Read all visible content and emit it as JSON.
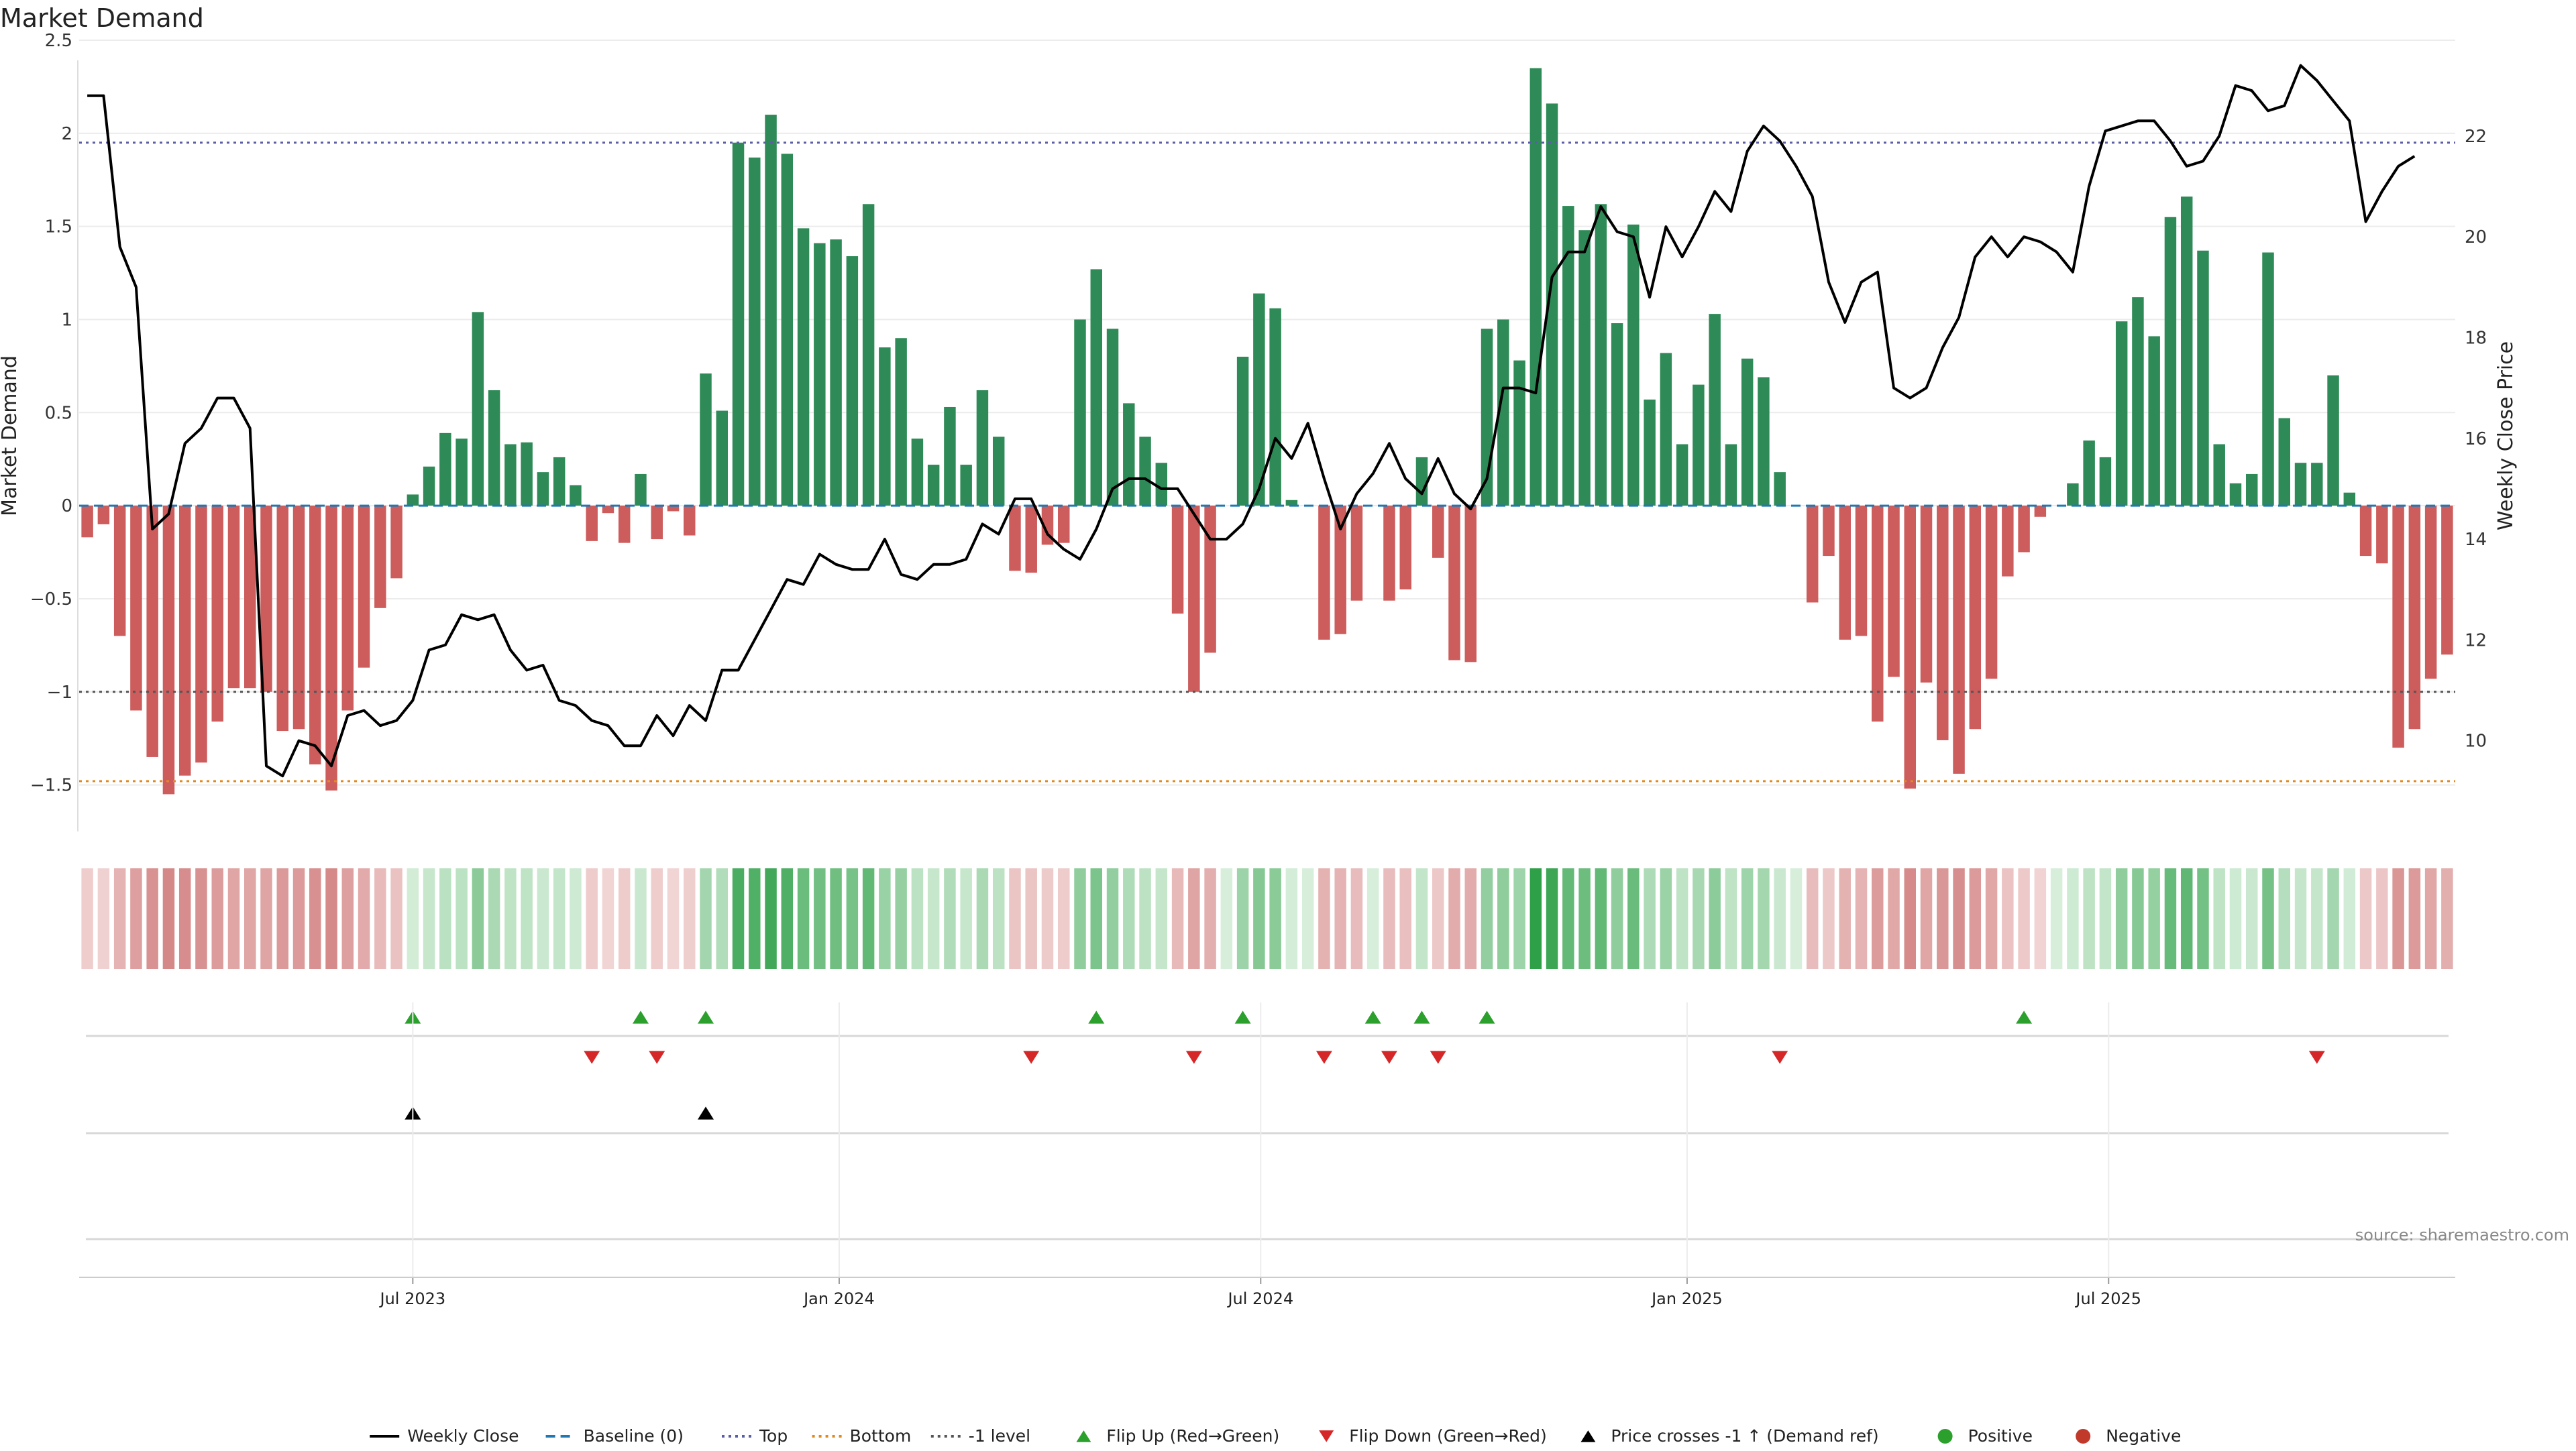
{
  "title": "Market Demand",
  "source_note": "source: sharemaestro.com",
  "left_axis": {
    "label": "Market Demand",
    "range": [
      -1.75,
      2.5
    ],
    "ticks": [
      -1.5,
      -1,
      -0.5,
      0,
      0.5,
      1,
      1.5,
      2,
      2.5
    ],
    "tick_labels": [
      "−1.5",
      "−1",
      "−0.5",
      "0",
      "0.5",
      "1",
      "1.5",
      "2",
      "2.5"
    ]
  },
  "right_axis": {
    "label": "Weekly Close Price",
    "range": [
      8.2,
      23.9
    ],
    "ticks": [
      10,
      12,
      14,
      16,
      18,
      20,
      22
    ],
    "tick_labels": [
      "10",
      "12",
      "14",
      "16",
      "18",
      "20",
      "22"
    ]
  },
  "x_axis": {
    "ticks": [
      {
        "label": "Jul 2023",
        "week": 20.5
      },
      {
        "label": "Jan 2024",
        "week": 46.7
      },
      {
        "label": "Jul 2024",
        "week": 72.6
      },
      {
        "label": "Jan 2025",
        "week": 98.8
      },
      {
        "label": "Jul 2025",
        "week": 124.7
      }
    ]
  },
  "legend": [
    {
      "label": "Weekly Close",
      "kind": "line",
      "color": "#000000"
    },
    {
      "label": "Baseline (0)",
      "kind": "dash",
      "color": "#1f77b4"
    },
    {
      "label": "Top",
      "kind": "dot",
      "color": "#5b5ea6"
    },
    {
      "label": "Bottom",
      "kind": "dot",
      "color": "#e08a1e"
    },
    {
      "label": "-1 level",
      "kind": "dot",
      "color": "#555555"
    },
    {
      "label": "Flip Up (Red→Green)",
      "kind": "tri-up",
      "color": "#2ca02c"
    },
    {
      "label": "Flip Down (Green→Red)",
      "kind": "tri-down",
      "color": "#d62728"
    },
    {
      "label": "Price crosses -1 ↑ (Demand ref)",
      "kind": "tri-up",
      "color": "#000000"
    },
    {
      "label": "Positive",
      "kind": "circle",
      "color": "#2ca02c"
    },
    {
      "label": "Negative",
      "kind": "circle",
      "color": "#c0392b"
    }
  ],
  "chart_data": {
    "type": "bar",
    "x_unit": "week index (weekly, first week ≈ Mar 2023)",
    "reference_lines": {
      "top": 1.95,
      "bottom": -1.48,
      "minus_one": -1,
      "baseline": 0
    },
    "colors": {
      "positive": "#2e8b57",
      "negative": "#cd5c5c",
      "price_line": "#000000"
    },
    "series": [
      {
        "name": "Market Demand",
        "values": [
          -0.17,
          -0.1,
          -0.7,
          -1.1,
          -1.35,
          -1.55,
          -1.45,
          -1.38,
          -1.16,
          -0.98,
          -0.98,
          -1.0,
          -1.21,
          -1.2,
          -1.39,
          -1.53,
          -1.1,
          -0.87,
          -0.55,
          -0.39,
          0.06,
          0.21,
          0.39,
          0.36,
          1.04,
          0.62,
          0.33,
          0.34,
          0.18,
          0.26,
          0.11,
          -0.19,
          -0.04,
          -0.2,
          0.17,
          -0.18,
          -0.03,
          -0.16,
          0.71,
          0.51,
          1.95,
          1.87,
          2.1,
          1.89,
          1.49,
          1.41,
          1.43,
          1.34,
          1.62,
          0.85,
          0.9,
          0.36,
          0.22,
          0.53,
          0.22,
          0.62,
          0.37,
          -0.35,
          -0.36,
          -0.21,
          -0.2,
          1.0,
          1.27,
          0.95,
          0.55,
          0.37,
          0.23,
          -0.58,
          -1.0,
          -0.79,
          0.0,
          0.8,
          1.14,
          1.06,
          0.03,
          0.0,
          -0.72,
          -0.69,
          -0.51,
          0.0,
          -0.51,
          -0.45,
          0.26,
          -0.28,
          -0.83,
          -0.84,
          0.95,
          1.0,
          0.78,
          2.35,
          2.16,
          1.61,
          1.48,
          1.62,
          0.98,
          1.51,
          0.57,
          0.82,
          0.33,
          0.65,
          1.03,
          0.33,
          0.79,
          0.69,
          0.18,
          0.0,
          -0.52,
          -0.27,
          -0.72,
          -0.7,
          -1.16,
          -0.92,
          -1.52,
          -0.95,
          -1.26,
          -1.44,
          -1.2,
          -0.93,
          -0.38,
          -0.25,
          -0.06,
          0.0,
          0.12,
          0.35,
          0.26,
          0.99,
          1.12,
          0.91,
          1.55,
          1.66,
          1.37,
          0.33,
          0.12,
          0.17,
          1.36,
          0.47,
          0.23,
          0.23,
          0.7,
          0.07,
          -0.27,
          -0.31,
          -1.3,
          -1.2,
          -0.93,
          -0.8
        ]
      },
      {
        "name": "Weekly Close",
        "values": [
          22.8,
          22.8,
          19.8,
          19.0,
          14.2,
          14.5,
          15.9,
          16.2,
          16.8,
          16.8,
          16.2,
          9.5,
          9.3,
          10.0,
          9.9,
          9.5,
          10.5,
          10.6,
          10.3,
          10.4,
          10.8,
          11.8,
          11.9,
          12.5,
          12.4,
          12.5,
          11.8,
          11.4,
          11.5,
          10.8,
          10.7,
          10.4,
          10.3,
          9.9,
          9.9,
          10.5,
          10.1,
          10.7,
          10.4,
          11.4,
          11.4,
          12.0,
          12.6,
          13.2,
          13.1,
          13.7,
          13.5,
          13.4,
          13.4,
          14.0,
          13.3,
          13.2,
          13.5,
          13.5,
          13.6,
          14.3,
          14.1,
          14.8,
          14.8,
          14.1,
          13.8,
          13.6,
          14.2,
          15.0,
          15.2,
          15.2,
          15.0,
          15.0,
          14.5,
          14.0,
          14.0,
          14.3,
          15.0,
          16.0,
          15.6,
          16.3,
          15.2,
          14.2,
          14.9,
          15.3,
          15.9,
          15.2,
          14.9,
          15.6,
          14.9,
          14.6,
          15.2,
          17.0,
          17.0,
          16.9,
          19.2,
          19.7,
          19.7,
          20.6,
          20.1,
          20.0,
          18.8,
          20.2,
          19.6,
          20.2,
          20.9,
          20.5,
          21.7,
          22.2,
          21.9,
          21.4,
          20.8,
          19.1,
          18.3,
          19.1,
          19.3,
          17.0,
          16.8,
          17.0,
          17.8,
          18.4,
          19.6,
          20.0,
          19.6,
          20.0,
          19.9,
          19.7,
          19.3,
          21.0,
          22.1,
          22.2,
          22.3,
          22.3,
          21.9,
          21.4,
          21.5,
          22.0,
          23.0,
          22.9,
          22.5,
          22.6,
          23.4,
          23.1,
          22.7,
          22.3,
          20.3,
          20.9,
          21.4,
          21.6
        ]
      }
    ],
    "flip_up_weeks": [
      20.5,
      34.5,
      38.5,
      62.5,
      71.5,
      79.5,
      82.5,
      86.5,
      119.5
    ],
    "flip_down_weeks": [
      31.5,
      35.5,
      58.5,
      68.5,
      76.5,
      80.5,
      83.5,
      104.5,
      137.5
    ],
    "price_cross_weeks": [
      20.5,
      38.5
    ]
  }
}
